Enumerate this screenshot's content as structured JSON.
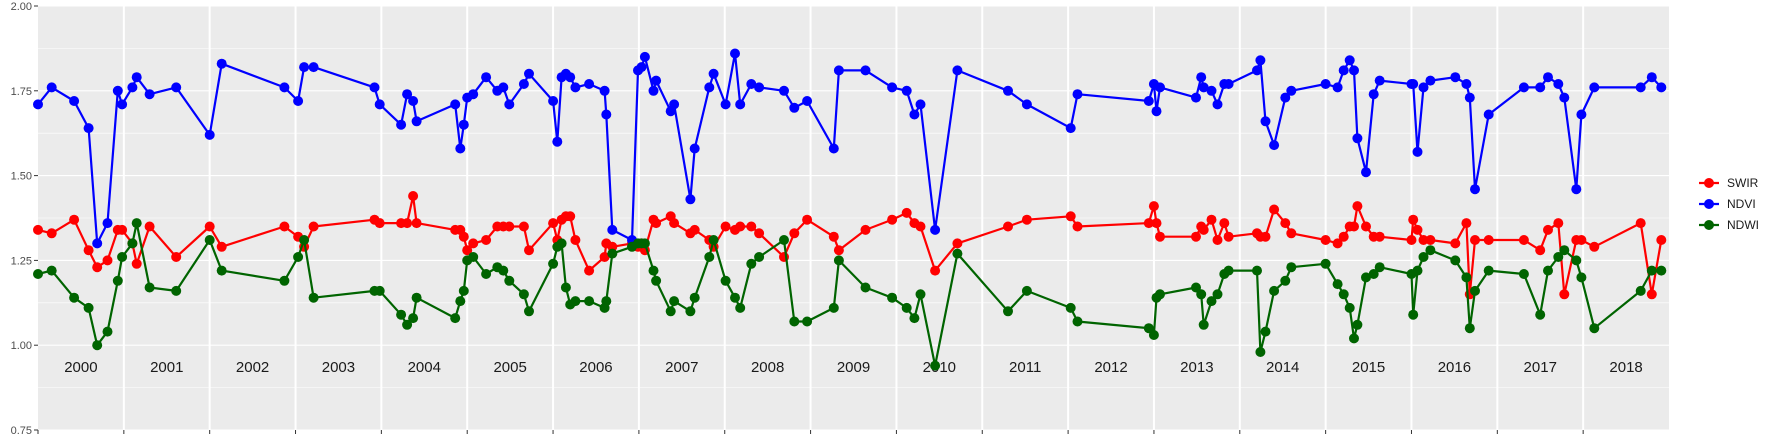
{
  "chart_data": {
    "type": "line",
    "title": "",
    "xlabel": "",
    "ylabel": "",
    "ylim": [
      0.75,
      2.0
    ],
    "xlim": [
      2000.0,
      2019.0
    ],
    "yticks": [
      0.75,
      1.0,
      1.25,
      1.5,
      1.75,
      2.0
    ],
    "ytick_labels": [
      "0.75",
      "1.00",
      "1.25",
      "1.50",
      "1.75",
      "2.00"
    ],
    "years": [
      "2000",
      "2001",
      "2002",
      "2003",
      "2004",
      "2005",
      "2006",
      "2007",
      "2008",
      "2009",
      "2010",
      "2011",
      "2012",
      "2013",
      "2014",
      "2015",
      "2016",
      "2017",
      "2018"
    ],
    "grid": true,
    "legend_position": "right",
    "series": [
      {
        "name": "SWIR",
        "color": "#ff0000",
        "x": [
          2000.0,
          2000.16,
          2000.42,
          2000.59,
          2000.69,
          2000.81,
          2000.93,
          2000.98,
          2001.1,
          2001.15,
          2001.3,
          2001.61,
          2002.0,
          2002.14,
          2002.87,
          2003.03,
          2003.1,
          2003.21,
          2003.92,
          2003.98,
          2004.23,
          2004.3,
          2004.37,
          2004.41,
          2004.86,
          2004.92,
          2004.96,
          2005.0,
          2005.07,
          2005.22,
          2005.35,
          2005.42,
          2005.49,
          2005.66,
          2005.72,
          2006.0,
          2006.05,
          2006.1,
          2006.15,
          2006.2,
          2006.26,
          2006.42,
          2006.6,
          2006.62,
          2006.69,
          2006.92,
          2006.99,
          2007.03,
          2007.07,
          2007.17,
          2007.2,
          2007.37,
          2007.41,
          2007.6,
          2007.65,
          2007.82,
          2007.87,
          2008.01,
          2008.12,
          2008.18,
          2008.31,
          2008.4,
          2008.69,
          2008.81,
          2008.96,
          2009.27,
          2009.33,
          2009.64,
          2009.95,
          2010.12,
          2010.21,
          2010.28,
          2010.45,
          2010.71,
          2011.3,
          2011.52,
          2012.03,
          2012.11,
          2012.94,
          2013.0,
          2013.03,
          2013.07,
          2013.49,
          2013.55,
          2013.58,
          2013.67,
          2013.74,
          2013.82,
          2013.87,
          2014.2,
          2014.24,
          2014.3,
          2014.4,
          2014.53,
          2014.6,
          2015.0,
          2015.14,
          2015.21,
          2015.28,
          2015.33,
          2015.37,
          2015.47,
          2015.56,
          2015.63,
          2016.0,
          2016.02,
          2016.07,
          2016.14,
          2016.22,
          2016.51,
          2016.64,
          2016.68,
          2016.74,
          2016.9,
          2017.31,
          2017.5,
          2017.59,
          2017.71,
          2017.78,
          2017.92,
          2017.98,
          2018.13,
          2018.67,
          2018.8,
          2018.91
        ],
        "values": [
          1.34,
          1.33,
          1.37,
          1.28,
          1.23,
          1.25,
          1.34,
          1.34,
          1.3,
          1.24,
          1.35,
          1.26,
          1.35,
          1.29,
          1.35,
          1.32,
          1.29,
          1.35,
          1.37,
          1.36,
          1.36,
          1.36,
          1.44,
          1.36,
          1.34,
          1.34,
          1.32,
          1.28,
          1.3,
          1.31,
          1.35,
          1.35,
          1.35,
          1.35,
          1.28,
          1.36,
          1.31,
          1.37,
          1.38,
          1.38,
          1.31,
          1.22,
          1.26,
          1.3,
          1.29,
          1.3,
          1.29,
          1.3,
          1.28,
          1.37,
          1.36,
          1.38,
          1.36,
          1.33,
          1.34,
          1.31,
          1.29,
          1.35,
          1.34,
          1.35,
          1.35,
          1.33,
          1.26,
          1.33,
          1.37,
          1.32,
          1.28,
          1.34,
          1.37,
          1.39,
          1.36,
          1.35,
          1.22,
          1.3,
          1.35,
          1.37,
          1.38,
          1.35,
          1.36,
          1.41,
          1.36,
          1.32,
          1.32,
          1.35,
          1.34,
          1.37,
          1.31,
          1.36,
          1.32,
          1.33,
          1.32,
          1.32,
          1.4,
          1.36,
          1.33,
          1.31,
          1.3,
          1.32,
          1.35,
          1.35,
          1.41,
          1.35,
          1.32,
          1.32,
          1.31,
          1.37,
          1.34,
          1.31,
          1.31,
          1.3,
          1.36,
          1.15,
          1.31,
          1.31,
          1.31,
          1.28,
          1.34,
          1.36,
          1.15,
          1.31,
          1.31,
          1.29,
          1.36,
          1.15,
          1.31
        ],
        "values_note": ""
      },
      {
        "name": "NDVI",
        "color": "#0000ff",
        "x": [
          2000.0,
          2000.16,
          2000.42,
          2000.59,
          2000.69,
          2000.81,
          2000.93,
          2000.98,
          2001.1,
          2001.15,
          2001.3,
          2001.61,
          2002.0,
          2002.14,
          2002.87,
          2003.03,
          2003.1,
          2003.21,
          2003.92,
          2003.98,
          2004.23,
          2004.3,
          2004.37,
          2004.41,
          2004.86,
          2004.92,
          2004.96,
          2005.0,
          2005.07,
          2005.22,
          2005.35,
          2005.42,
          2005.49,
          2005.66,
          2005.72,
          2006.0,
          2006.05,
          2006.1,
          2006.15,
          2006.2,
          2006.26,
          2006.42,
          2006.6,
          2006.62,
          2006.69,
          2006.92,
          2006.99,
          2007.03,
          2007.07,
          2007.17,
          2007.2,
          2007.37,
          2007.41,
          2007.6,
          2007.65,
          2007.82,
          2007.87,
          2008.01,
          2008.12,
          2008.18,
          2008.31,
          2008.4,
          2008.69,
          2008.81,
          2008.96,
          2009.27,
          2009.33,
          2009.64,
          2009.95,
          2010.12,
          2010.21,
          2010.28,
          2010.45,
          2010.71,
          2011.3,
          2011.52,
          2012.03,
          2012.11,
          2012.94,
          2013.0,
          2013.03,
          2013.07,
          2013.49,
          2013.55,
          2013.58,
          2013.67,
          2013.74,
          2013.82,
          2013.87,
          2014.2,
          2014.24,
          2014.3,
          2014.4,
          2014.53,
          2014.6,
          2015.0,
          2015.14,
          2015.21,
          2015.28,
          2015.33,
          2015.37,
          2015.47,
          2015.56,
          2015.63,
          2016.0,
          2016.02,
          2016.07,
          2016.14,
          2016.22,
          2016.51,
          2016.64,
          2016.68,
          2016.74,
          2016.9,
          2017.31,
          2017.5,
          2017.59,
          2017.71,
          2017.78,
          2017.92,
          2017.98,
          2018.13,
          2018.67,
          2018.8,
          2018.91
        ],
        "values": [
          1.71,
          1.76,
          1.72,
          1.64,
          1.3,
          1.36,
          1.75,
          1.71,
          1.76,
          1.79,
          1.74,
          1.76,
          1.62,
          1.83,
          1.76,
          1.72,
          1.82,
          1.82,
          1.76,
          1.71,
          1.65,
          1.74,
          1.72,
          1.66,
          1.71,
          1.58,
          1.65,
          1.73,
          1.74,
          1.79,
          1.75,
          1.76,
          1.71,
          1.77,
          1.8,
          1.72,
          1.6,
          1.79,
          1.8,
          1.79,
          1.76,
          1.77,
          1.75,
          1.68,
          1.34,
          1.31,
          1.81,
          1.82,
          1.85,
          1.75,
          1.78,
          1.69,
          1.71,
          1.43,
          1.58,
          1.76,
          1.8,
          1.71,
          1.86,
          1.71,
          1.77,
          1.76,
          1.75,
          1.7,
          1.72,
          1.58,
          1.81,
          1.81,
          1.76,
          1.75,
          1.68,
          1.71,
          1.34,
          1.81,
          1.75,
          1.71,
          1.64,
          1.74,
          1.72,
          1.77,
          1.69,
          1.76,
          1.73,
          1.79,
          1.76,
          1.75,
          1.71,
          1.77,
          1.77,
          1.81,
          1.84,
          1.66,
          1.59,
          1.73,
          1.75,
          1.77,
          1.76,
          1.81,
          1.84,
          1.81,
          1.61,
          1.51,
          1.74,
          1.78,
          1.77,
          1.77,
          1.57,
          1.76,
          1.78,
          1.79,
          1.77,
          1.73,
          1.46,
          1.68,
          1.76,
          1.76,
          1.79,
          1.77,
          1.73,
          1.46,
          1.68,
          1.76,
          1.76,
          1.79,
          1.76
        ],
        "values_note": ""
      },
      {
        "name": "NDWI",
        "color": "#006400",
        "x": [
          2000.0,
          2000.16,
          2000.42,
          2000.59,
          2000.69,
          2000.81,
          2000.93,
          2000.98,
          2001.1,
          2001.15,
          2001.3,
          2001.61,
          2002.0,
          2002.14,
          2002.87,
          2003.03,
          2003.1,
          2003.21,
          2003.92,
          2003.98,
          2004.23,
          2004.3,
          2004.37,
          2004.41,
          2004.86,
          2004.92,
          2004.96,
          2005.0,
          2005.07,
          2005.22,
          2005.35,
          2005.42,
          2005.49,
          2005.66,
          2005.72,
          2006.0,
          2006.05,
          2006.1,
          2006.15,
          2006.2,
          2006.26,
          2006.42,
          2006.6,
          2006.62,
          2006.69,
          2006.92,
          2006.99,
          2007.03,
          2007.07,
          2007.17,
          2007.2,
          2007.37,
          2007.41,
          2007.6,
          2007.65,
          2007.82,
          2007.87,
          2008.01,
          2008.12,
          2008.18,
          2008.31,
          2008.4,
          2008.69,
          2008.81,
          2008.96,
          2009.27,
          2009.33,
          2009.64,
          2009.95,
          2010.12,
          2010.21,
          2010.28,
          2010.45,
          2010.71,
          2011.3,
          2011.52,
          2012.03,
          2012.11,
          2012.94,
          2013.0,
          2013.03,
          2013.07,
          2013.49,
          2013.55,
          2013.58,
          2013.67,
          2013.74,
          2013.82,
          2013.87,
          2014.2,
          2014.24,
          2014.3,
          2014.4,
          2014.53,
          2014.6,
          2015.0,
          2015.14,
          2015.21,
          2015.28,
          2015.33,
          2015.37,
          2015.47,
          2015.56,
          2015.63,
          2016.0,
          2016.02,
          2016.07,
          2016.14,
          2016.22,
          2016.51,
          2016.64,
          2016.68,
          2016.74,
          2016.9,
          2017.31,
          2017.5,
          2017.59,
          2017.71,
          2017.78,
          2017.92,
          2017.98,
          2018.13,
          2018.67,
          2018.8,
          2018.91
        ],
        "values": [
          1.21,
          1.22,
          1.14,
          1.11,
          1.0,
          1.04,
          1.19,
          1.26,
          1.3,
          1.36,
          1.17,
          1.16,
          1.31,
          1.22,
          1.19,
          1.26,
          1.31,
          1.14,
          1.16,
          1.16,
          1.09,
          1.06,
          1.08,
          1.14,
          1.08,
          1.13,
          1.16,
          1.25,
          1.26,
          1.21,
          1.23,
          1.22,
          1.19,
          1.15,
          1.1,
          1.24,
          1.29,
          1.3,
          1.17,
          1.12,
          1.13,
          1.13,
          1.11,
          1.13,
          1.27,
          1.29,
          1.3,
          1.3,
          1.3,
          1.22,
          1.19,
          1.1,
          1.13,
          1.1,
          1.14,
          1.26,
          1.31,
          1.19,
          1.14,
          1.11,
          1.24,
          1.26,
          1.31,
          1.07,
          1.07,
          1.11,
          1.25,
          1.17,
          1.14,
          1.11,
          1.08,
          1.15,
          0.94,
          1.27,
          1.1,
          1.16,
          1.11,
          1.07,
          1.05,
          1.03,
          1.14,
          1.15,
          1.17,
          1.15,
          1.06,
          1.13,
          1.15,
          1.21,
          1.22,
          1.22,
          0.98,
          1.04,
          1.16,
          1.19,
          1.23,
          1.24,
          1.18,
          1.15,
          1.11,
          1.02,
          1.06,
          1.2,
          1.21,
          1.23,
          1.21,
          1.09,
          1.22,
          1.26,
          1.28,
          1.25,
          1.2,
          1.05,
          1.16,
          1.22,
          1.21,
          1.09,
          1.22,
          1.26,
          1.28,
          1.25,
          1.2,
          1.05,
          1.16,
          1.22,
          1.22
        ],
        "values_note": ""
      }
    ]
  }
}
